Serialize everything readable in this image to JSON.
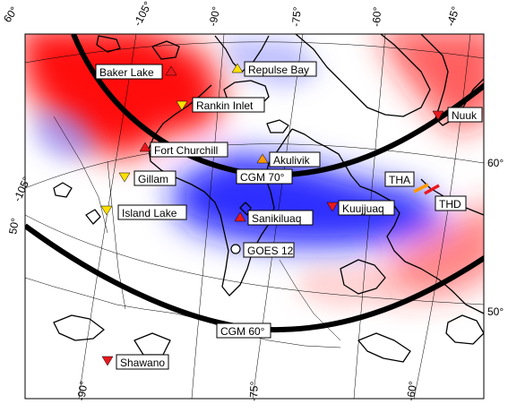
{
  "map": {
    "longitude_labels_top": [
      "-105°",
      "-90°",
      "-75°",
      "-60°",
      "-45°"
    ],
    "longitude_labels_bottom": [
      "-90°",
      "-75°",
      "-60°"
    ],
    "latitude_labels_left": [
      "60°",
      "-105°",
      "50°"
    ],
    "latitude_labels_right": [
      "60°",
      "50°"
    ],
    "cgm_labels": [
      "CGM 70°",
      "CGM 60°"
    ],
    "colors": {
      "positive": "#ff0000",
      "negative": "#0000ff",
      "station_red": "#e8181e",
      "station_yellow": "#ffe000",
      "station_orange": "#ff9900",
      "thd_segment": "#e8181e",
      "tha_segment": "#ff9900"
    },
    "stations": [
      {
        "name": "Baker Lake",
        "marker": "triangle-up",
        "color": "#e8181e"
      },
      {
        "name": "Repulse Bay",
        "marker": "triangle-up",
        "color": "#ffe000"
      },
      {
        "name": "Rankin Inlet",
        "marker": "triangle-down",
        "color": "#ffe000"
      },
      {
        "name": "Nuuk",
        "marker": "triangle-down",
        "color": "#e8181e"
      },
      {
        "name": "Fort Churchill",
        "marker": "triangle-up",
        "color": "#e8181e"
      },
      {
        "name": "Akulivik",
        "marker": "triangle-up",
        "color": "#ff9900"
      },
      {
        "name": "Gillam",
        "marker": "triangle-down",
        "color": "#ffe000"
      },
      {
        "name": "Island Lake",
        "marker": "triangle-down",
        "color": "#ffe000"
      },
      {
        "name": "Sanikiluaq",
        "marker": "triangle-up",
        "color": "#e8181e"
      },
      {
        "name": "Kuujjuaq",
        "marker": "triangle-down",
        "color": "#e8181e"
      },
      {
        "name": "GOES 12",
        "marker": "circle",
        "color": "#ffffff"
      },
      {
        "name": "Shawano",
        "marker": "triangle-down",
        "color": "#e8181e"
      }
    ],
    "satellite_tracks": [
      "THA",
      "THD"
    ]
  }
}
